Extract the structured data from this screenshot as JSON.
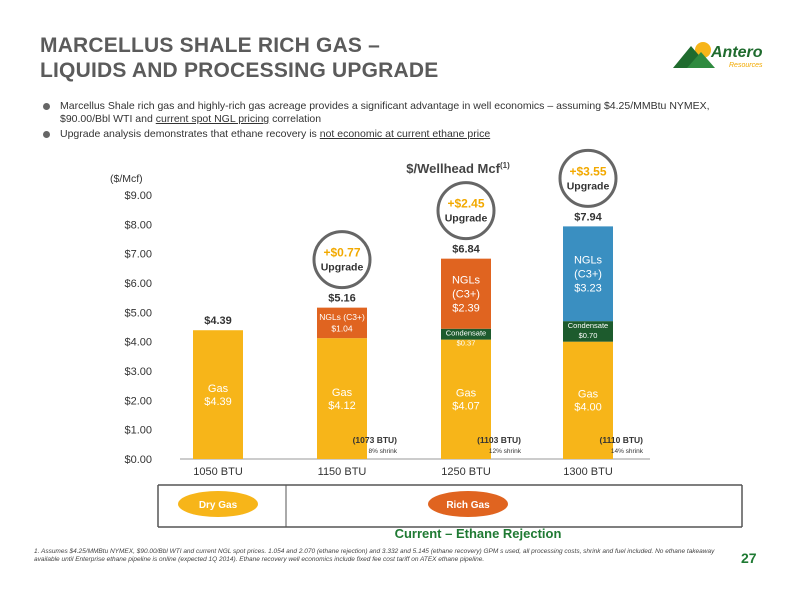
{
  "title": {
    "line1": "MARCELLUS SHALE RICH GAS –",
    "line2": "LIQUIDS AND PROCESSING UPGRADE"
  },
  "logo": {
    "name": "Antero",
    "sub": "Resources"
  },
  "bullets": [
    {
      "pre": "Marcellus Shale rich gas and highly-rich gas acreage provides a significant advantage in well economics – assuming $4.25/MMBtu NYMEX, $90.00/Bbl WTI and ",
      "link": "current spot NGL pricing",
      "post": " correlation"
    },
    {
      "pre": "Upgrade analysis demonstrates that ethane recovery is ",
      "link": "not economic at current ethane price",
      "post": ""
    }
  ],
  "chart_data": {
    "type": "bar",
    "stacked": true,
    "title": "$/Wellhead Mcf",
    "title_sup": "(1)",
    "ylabel": "($/Mcf)",
    "ylim": [
      0,
      9
    ],
    "yticks": [
      "$0.00",
      "$1.00",
      "$2.00",
      "$3.00",
      "$4.00",
      "$5.00",
      "$6.00",
      "$7.00",
      "$8.00",
      "$9.00"
    ],
    "categories": [
      "1050 BTU",
      "1150 BTU",
      "1250 BTU",
      "1300 BTU"
    ],
    "series": [
      {
        "name": "Gas",
        "color": "#f7b519",
        "values": [
          4.39,
          4.12,
          4.07,
          4.0
        ],
        "labels": [
          "Gas\n$4.39",
          "Gas\n$4.12",
          "Gas\n$4.07",
          "Gas\n$4.00"
        ]
      },
      {
        "name": "Condensate",
        "color": "#1d5b2d",
        "values": [
          0,
          0,
          0.37,
          0.7
        ],
        "labels": [
          "",
          "",
          "Condensate\n$0.37",
          "Condensate\n$0.70"
        ]
      },
      {
        "name": "NGLs (C3+)",
        "colors": [
          "#e06420",
          "#e06420",
          "#e06420",
          "#3a8fc1"
        ],
        "values": [
          0,
          1.04,
          2.39,
          3.23
        ],
        "labels": [
          "",
          "NGLs (C3+)\n$1.04",
          "NGLs\n(C3+)\n$2.39",
          "NGLs\n(C3+)\n$3.23"
        ]
      }
    ],
    "totals": [
      "$4.39",
      "$5.16",
      "$6.84",
      "$7.94"
    ],
    "upgrades": [
      null,
      "+$0.77",
      "+$2.45",
      "+$3.55"
    ],
    "upgrade_word": "Upgrade",
    "shrink": [
      null,
      {
        "btu": "(1073 BTU)",
        "pct": "8% shrink"
      },
      {
        "btu": "(1103 BTU)",
        "pct": "12% shrink"
      },
      {
        "btu": "(1110 BTU)",
        "pct": "14% shrink"
      }
    ],
    "groups": [
      {
        "label": "Dry Gas",
        "color": "#f7b519"
      },
      {
        "label": "Rich Gas",
        "color": "#e06420"
      }
    ],
    "xlabel": "Current – Ethane Rejection"
  },
  "footnote": "1.   Assumes $4.25/MMBtu NYMEX, $90.00/Bbl WTI and current NGL spot prices. 1.054 and 2.070 (ethane rejection) and 3.332 and 5.145 (ethane recovery) GPM s used, all processing costs, shrink and fuel included. No ethane takeaway available until Enterprise ethane pipeline is online (expected 1Q 2014). Ethane recovery well economics include fixed fee cost tariff on ATEX ethane pipeline.",
  "page_number": "27",
  "colors": {
    "title": "#5b5b5b",
    "accent_green": "#1f7a33",
    "upgrade": "#f2a900"
  }
}
